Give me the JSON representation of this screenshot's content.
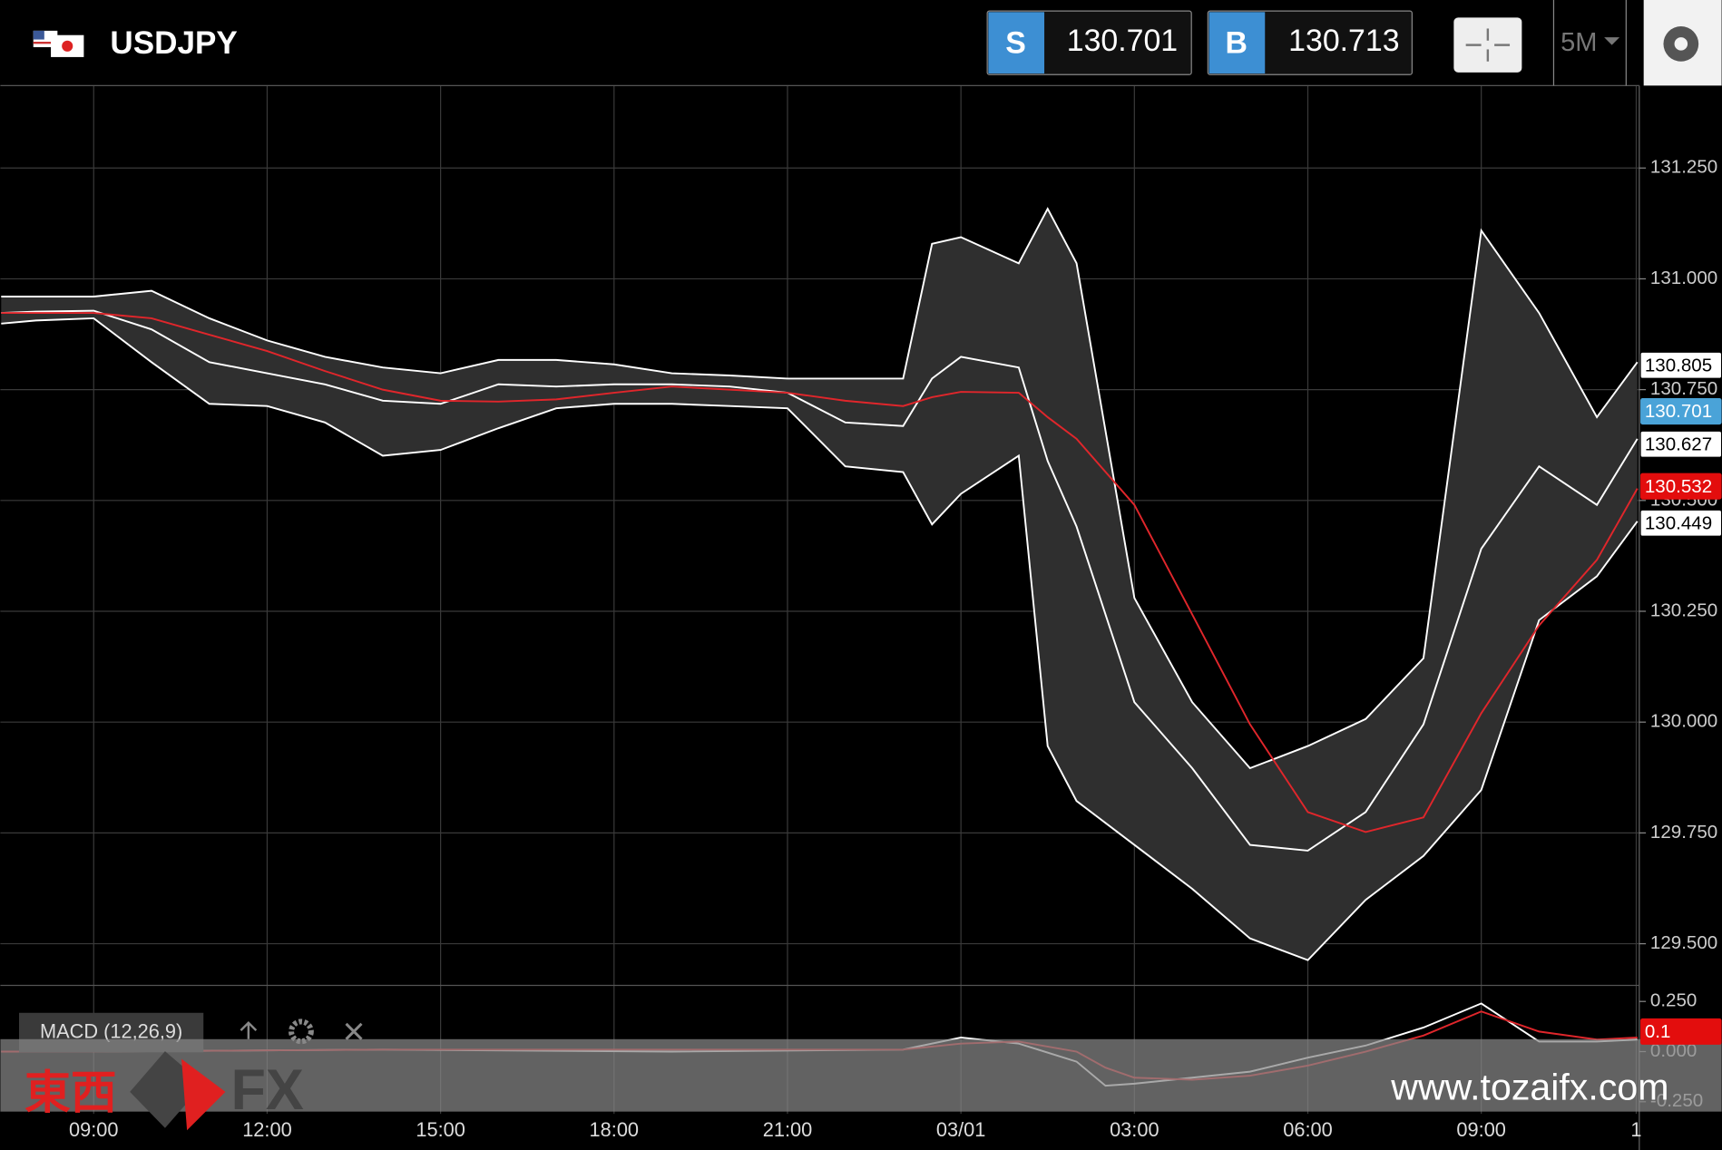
{
  "header": {
    "symbol": "USDJPY",
    "sell": {
      "label": "S",
      "price": "130.701"
    },
    "buy": {
      "label": "B",
      "price": "130.713"
    },
    "timeframe": "5M"
  },
  "watermark": {
    "brand_cjk": "東西",
    "brand": "FX",
    "url": "www.tozaifx.com"
  },
  "chart_data": [
    {
      "type": "line",
      "grid": true,
      "band_fill": "#2f2f2f",
      "xlim": [
        -1.614,
        26.733
      ],
      "xticks": [
        {
          "value": 0,
          "label": "09:00"
        },
        {
          "value": 3,
          "label": "12:00"
        },
        {
          "value": 6,
          "label": "15:00"
        },
        {
          "value": 9,
          "label": "18:00"
        },
        {
          "value": 12,
          "label": "21:00"
        },
        {
          "value": 15,
          "label": "03/01"
        },
        {
          "value": 18,
          "label": "03:00"
        },
        {
          "value": 21,
          "label": "06:00"
        },
        {
          "value": 24,
          "label": "09:00"
        },
        {
          "value": 26.68,
          "label": "1"
        }
      ],
      "ylim": [
        129.406,
        131.431
      ],
      "yticks": [
        {
          "value": 131.25,
          "label": "131.250"
        },
        {
          "value": 131,
          "label": "131.000"
        },
        {
          "value": 130.75,
          "label": "130.750"
        },
        {
          "value": 130.5,
          "label": "130.500"
        },
        {
          "value": 130.25,
          "label": "130.250"
        },
        {
          "value": 130,
          "label": "130.000"
        },
        {
          "value": 129.75,
          "label": "129.750"
        },
        {
          "value": 129.5,
          "label": "129.500"
        }
      ],
      "x": [
        -1.6,
        -1,
        0,
        1,
        2,
        3,
        4,
        5,
        6,
        7,
        8,
        9,
        10,
        11,
        12,
        13,
        14,
        14.5,
        15,
        16,
        16.5,
        17,
        18,
        19,
        20,
        21,
        22,
        23,
        24,
        25,
        26,
        26.7
      ],
      "series": [
        {
          "color": "#ffffff",
          "values": [
            130.96,
            130.96,
            130.96,
            130.973,
            130.911,
            130.861,
            130.824,
            130.8,
            130.787,
            130.817,
            130.817,
            130.807,
            130.787,
            130.782,
            130.775,
            130.775,
            130.775,
            131.079,
            131.094,
            131.035,
            131.158,
            131.035,
            130.28,
            130.045,
            129.896,
            129.946,
            130.007,
            130.144,
            131.109,
            130.923,
            130.688,
            130.812
          ]
        },
        {
          "color": "#ffffff",
          "values": [
            130.923,
            130.926,
            130.928,
            130.886,
            130.812,
            130.787,
            130.762,
            130.725,
            130.718,
            130.762,
            130.757,
            130.762,
            130.762,
            130.757,
            130.743,
            130.676,
            130.668,
            130.775,
            130.824,
            130.8,
            130.589,
            130.441,
            130.045,
            129.896,
            129.723,
            129.71,
            129.797,
            129.995,
            130.391,
            130.577,
            130.49,
            130.639
          ]
        },
        {
          "color": "#ffffff",
          "values": [
            130.899,
            130.906,
            130.911,
            130.812,
            130.718,
            130.713,
            130.676,
            130.601,
            130.614,
            130.663,
            130.708,
            130.718,
            130.718,
            130.713,
            130.708,
            130.577,
            130.564,
            130.446,
            130.515,
            130.601,
            129.946,
            129.822,
            129.723,
            129.624,
            129.512,
            129.463,
            129.599,
            129.698,
            129.847,
            130.23,
            130.329,
            130.453
          ]
        },
        {
          "color": "#e0262b",
          "values": [
            130.923,
            130.923,
            130.923,
            130.911,
            130.874,
            130.837,
            130.792,
            130.75,
            130.725,
            130.723,
            130.728,
            130.743,
            130.757,
            130.75,
            130.743,
            130.725,
            130.713,
            130.733,
            130.745,
            130.743,
            130.688,
            130.639,
            130.49,
            130.243,
            129.995,
            129.797,
            129.752,
            129.785,
            130.02,
            130.218,
            130.366,
            130.527
          ]
        }
      ],
      "price_tags": [
        {
          "value": 130.805,
          "color": "#ffffff"
        },
        {
          "value": 130.701,
          "color": "#4aa3d8"
        },
        {
          "value": 130.627,
          "color": "#ffffff"
        },
        {
          "value": 130.532,
          "color": "#e30d0d"
        },
        {
          "value": 130.449,
          "color": "#ffffff"
        }
      ]
    },
    {
      "type": "line",
      "title": "MACD (12,26,9)",
      "grid": true,
      "xlim": [
        -1.614,
        26.733
      ],
      "ylim": [
        -0.31,
        0.33
      ],
      "yticks": [
        {
          "value": 0.25,
          "label": "0.250"
        },
        {
          "value": 0,
          "label": "0.000"
        },
        {
          "value": -0.25,
          "label": "-0.250"
        }
      ],
      "x": [
        -1.6,
        0,
        5,
        10,
        14,
        15,
        16,
        17,
        17.5,
        18,
        19,
        20,
        21,
        22,
        23,
        24,
        25,
        26,
        26.7
      ],
      "series": [
        {
          "color": "#ffffff",
          "values": [
            0,
            0,
            0.01,
            0,
            0.01,
            0.07,
            0.04,
            -0.05,
            -0.17,
            -0.16,
            -0.13,
            -0.1,
            -0.03,
            0.03,
            0.12,
            0.24,
            0.05,
            0.05,
            0.06
          ]
        },
        {
          "color": "#e0262b",
          "values": [
            0,
            0,
            0.01,
            0.01,
            0.01,
            0.04,
            0.05,
            0,
            -0.08,
            -0.13,
            -0.14,
            -0.12,
            -0.07,
            0,
            0.08,
            0.2,
            0.1,
            0.06,
            0.07
          ]
        }
      ],
      "price_tags": [
        {
          "value": 0.1,
          "color": "#e30d0d"
        }
      ]
    }
  ]
}
